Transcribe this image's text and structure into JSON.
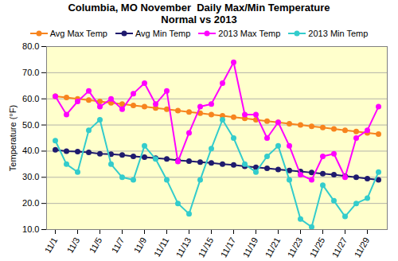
{
  "chart_data": {
    "type": "line",
    "title": "Columbia, MO November  Daily Max/Min Temperature",
    "subtitle": "Normal vs 2013",
    "y_label": "Temperature (°F)",
    "categories": [
      "11/1",
      null,
      "11/3",
      null,
      "11/5",
      null,
      "11/7",
      null,
      "11/9",
      null,
      "11/11",
      null,
      "11/13",
      null,
      "11/15",
      null,
      "11/17",
      null,
      "11/19",
      null,
      "11/21",
      null,
      "11/23",
      null,
      "11/25",
      null,
      "11/27",
      null,
      "11/29",
      null
    ],
    "series": [
      {
        "name": "Avg Max Temp",
        "color": "#f7841e",
        "marker": "circle",
        "line_style": "solid",
        "values": [
          61,
          60.5,
          60,
          59.5,
          59,
          58.5,
          58,
          57.5,
          57,
          56.5,
          56,
          55.5,
          55,
          54.5,
          54,
          53.5,
          53,
          52.5,
          52,
          51.5,
          51,
          50.5,
          50,
          49.5,
          49,
          48.5,
          48,
          47.5,
          47,
          46.5
        ]
      },
      {
        "name": "Avg Min Temp",
        "color": "#1f1a6e",
        "marker": "circle",
        "line_style": "solid",
        "values": [
          40.5,
          40,
          39.8,
          39.5,
          39,
          38.8,
          38.5,
          38,
          37.7,
          37.3,
          37,
          36.5,
          36.2,
          35.8,
          35.5,
          35,
          34.7,
          34.2,
          33.8,
          33.4,
          33,
          32.6,
          32.2,
          31.8,
          31.4,
          31,
          30.5,
          30,
          29.5,
          29
        ]
      },
      {
        "name": "2013 Max Temp",
        "color": "#ff00ff",
        "marker": "circle",
        "line_style": "solid",
        "values": [
          61,
          54,
          59,
          63,
          57,
          60,
          56,
          62,
          66,
          58,
          63,
          36,
          47,
          57,
          58,
          66,
          74,
          54,
          54,
          45,
          51,
          42,
          31,
          29,
          38,
          39,
          30,
          45,
          48,
          57
        ]
      },
      {
        "name": "2013 Min Temp",
        "color": "#33cccc",
        "marker": "circle",
        "line_style": "solid",
        "values": [
          44,
          35,
          32,
          48,
          52,
          35,
          30,
          29,
          42,
          37,
          29,
          20,
          16,
          29,
          41,
          52,
          45,
          35,
          32,
          38,
          42,
          29,
          14,
          11,
          27,
          21,
          15,
          20,
          22,
          32
        ]
      }
    ],
    "ylim": [
      10,
      80
    ],
    "yticks": [
      {
        "value": 10,
        "label": "10.0"
      },
      {
        "value": 20,
        "label": "20.0"
      },
      {
        "value": 30,
        "label": "30.0"
      },
      {
        "value": 40,
        "label": "40.0"
      },
      {
        "value": 50,
        "label": "50.0"
      },
      {
        "value": 60,
        "label": "60.0"
      },
      {
        "value": 70,
        "label": "70.0"
      },
      {
        "value": 80,
        "label": "80.0"
      }
    ],
    "grid": true,
    "legend": "top-right"
  }
}
